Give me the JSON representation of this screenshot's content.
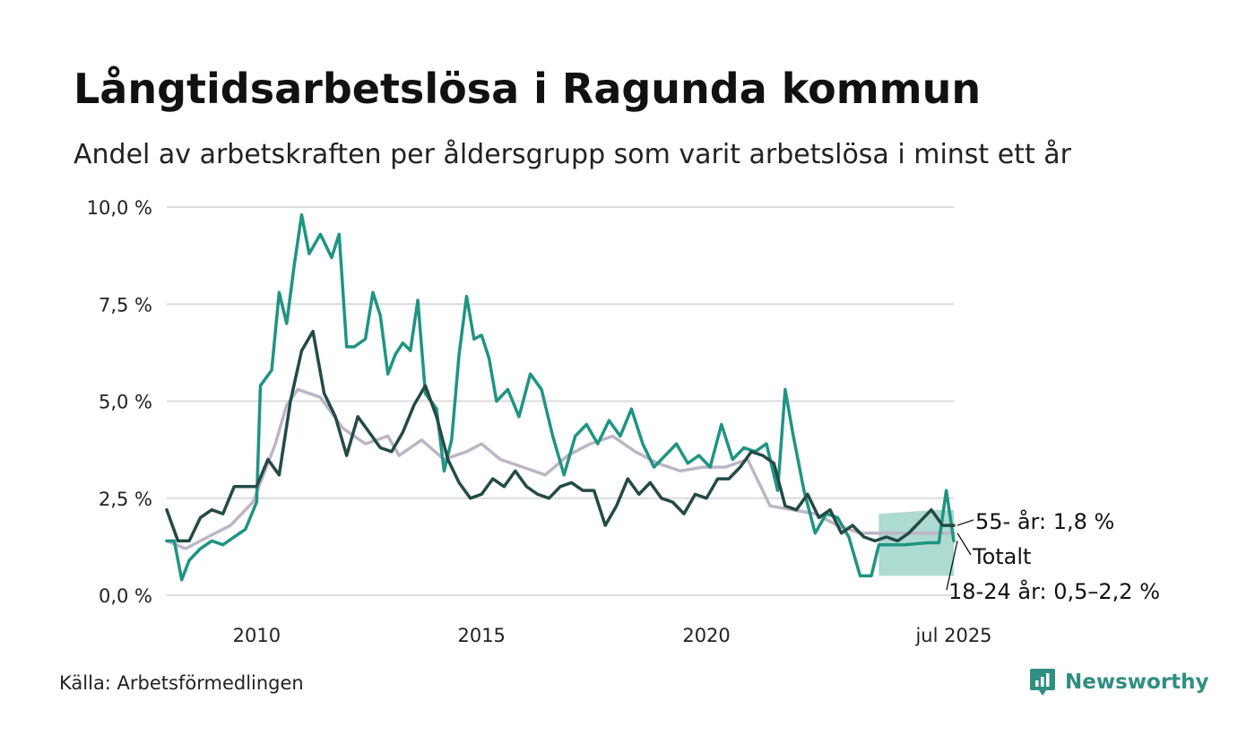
{
  "title": "Långtidsarbetslösa i Ragunda kommun",
  "subtitle": "Andel av arbetskraften per åldersgrupp som varit arbetslösa i minst ett år",
  "source": "Källa: Arbetsförmedlingen",
  "brand": "Newsworthy",
  "colors": {
    "total": "#bdb6c6",
    "youth": "#1f9483",
    "youth_band": "#9fd3c9",
    "older": "#244a46",
    "grid": "#dcdcdc",
    "brand": "#2f8f80"
  },
  "chart_data": {
    "type": "line",
    "x_unit": "month",
    "x_range": [
      "2008-01",
      "2025-07"
    ],
    "y_range": [
      0,
      10
    ],
    "y_ticks": [
      0,
      2.5,
      5,
      7.5,
      10
    ],
    "y_tick_labels": [
      "0,0 %",
      "2,5 %",
      "5,0 %",
      "7,5 %",
      "10,0 %"
    ],
    "x_ticks": [
      "2010-01",
      "2015-01",
      "2020-01",
      "2025-07"
    ],
    "x_tick_labels": [
      "2010",
      "2015",
      "2020",
      "jul 2025"
    ],
    "grid": true,
    "series": [
      {
        "name": "Totalt",
        "end_label": "Totalt",
        "color_key": "total",
        "points": [
          [
            "2008-01",
            1.4
          ],
          [
            "2008-06",
            1.2
          ],
          [
            "2008-12",
            1.5
          ],
          [
            "2009-06",
            1.8
          ],
          [
            "2009-12",
            2.4
          ],
          [
            "2010-06",
            3.9
          ],
          [
            "2010-09",
            4.9
          ],
          [
            "2010-12",
            5.3
          ],
          [
            "2011-06",
            5.1
          ],
          [
            "2011-12",
            4.3
          ],
          [
            "2012-06",
            3.9
          ],
          [
            "2012-12",
            4.1
          ],
          [
            "2013-03",
            3.6
          ],
          [
            "2013-09",
            4.0
          ],
          [
            "2014-03",
            3.5
          ],
          [
            "2014-09",
            3.7
          ],
          [
            "2015-01",
            3.9
          ],
          [
            "2015-06",
            3.5
          ],
          [
            "2015-12",
            3.3
          ],
          [
            "2016-06",
            3.1
          ],
          [
            "2016-12",
            3.6
          ],
          [
            "2017-06",
            3.9
          ],
          [
            "2017-12",
            4.1
          ],
          [
            "2018-06",
            3.7
          ],
          [
            "2018-12",
            3.4
          ],
          [
            "2019-06",
            3.2
          ],
          [
            "2019-12",
            3.3
          ],
          [
            "2020-06",
            3.3
          ],
          [
            "2020-12",
            3.5
          ],
          [
            "2021-06",
            2.3
          ],
          [
            "2021-12",
            2.2
          ],
          [
            "2022-06",
            2.1
          ],
          [
            "2022-12",
            1.8
          ],
          [
            "2023-06",
            1.6
          ],
          [
            "2023-12",
            1.6
          ],
          [
            "2024-06",
            1.6
          ],
          [
            "2024-12",
            1.6
          ],
          [
            "2025-07",
            1.6
          ]
        ]
      },
      {
        "name": "18-24 år",
        "end_label": "18-24 år: 0,5–2,2 %",
        "color_key": "youth",
        "points": [
          [
            "2008-01",
            1.4
          ],
          [
            "2008-03",
            1.4
          ],
          [
            "2008-05",
            0.4
          ],
          [
            "2008-07",
            0.9
          ],
          [
            "2008-10",
            1.2
          ],
          [
            "2009-01",
            1.4
          ],
          [
            "2009-04",
            1.3
          ],
          [
            "2009-07",
            1.5
          ],
          [
            "2009-10",
            1.7
          ],
          [
            "2010-01",
            2.4
          ],
          [
            "2010-02",
            5.4
          ],
          [
            "2010-05",
            5.8
          ],
          [
            "2010-07",
            7.8
          ],
          [
            "2010-09",
            7.0
          ],
          [
            "2010-11",
            8.5
          ],
          [
            "2011-01",
            9.8
          ],
          [
            "2011-03",
            8.8
          ],
          [
            "2011-06",
            9.3
          ],
          [
            "2011-09",
            8.7
          ],
          [
            "2011-11",
            9.3
          ],
          [
            "2012-01",
            6.4
          ],
          [
            "2012-03",
            6.4
          ],
          [
            "2012-06",
            6.6
          ],
          [
            "2012-08",
            7.8
          ],
          [
            "2012-10",
            7.2
          ],
          [
            "2012-12",
            5.7
          ],
          [
            "2013-02",
            6.2
          ],
          [
            "2013-04",
            6.5
          ],
          [
            "2013-06",
            6.3
          ],
          [
            "2013-08",
            7.6
          ],
          [
            "2013-10",
            5.2
          ],
          [
            "2014-01",
            4.8
          ],
          [
            "2014-03",
            3.2
          ],
          [
            "2014-05",
            4.0
          ],
          [
            "2014-07",
            6.2
          ],
          [
            "2014-09",
            7.7
          ],
          [
            "2014-11",
            6.6
          ],
          [
            "2015-01",
            6.7
          ],
          [
            "2015-03",
            6.1
          ],
          [
            "2015-05",
            5.0
          ],
          [
            "2015-08",
            5.3
          ],
          [
            "2015-11",
            4.6
          ],
          [
            "2016-02",
            5.7
          ],
          [
            "2016-05",
            5.3
          ],
          [
            "2016-08",
            4.1
          ],
          [
            "2016-11",
            3.1
          ],
          [
            "2017-02",
            4.1
          ],
          [
            "2017-05",
            4.4
          ],
          [
            "2017-08",
            3.9
          ],
          [
            "2017-11",
            4.5
          ],
          [
            "2018-02",
            4.1
          ],
          [
            "2018-05",
            4.8
          ],
          [
            "2018-08",
            3.9
          ],
          [
            "2018-11",
            3.3
          ],
          [
            "2019-02",
            3.6
          ],
          [
            "2019-05",
            3.9
          ],
          [
            "2019-08",
            3.4
          ],
          [
            "2019-11",
            3.6
          ],
          [
            "2020-02",
            3.3
          ],
          [
            "2020-05",
            4.4
          ],
          [
            "2020-08",
            3.5
          ],
          [
            "2020-11",
            3.8
          ],
          [
            "2021-02",
            3.7
          ],
          [
            "2021-05",
            3.9
          ],
          [
            "2021-08",
            2.7
          ],
          [
            "2021-10",
            5.3
          ],
          [
            "2021-12",
            4.2
          ],
          [
            "2022-03",
            2.7
          ],
          [
            "2022-06",
            1.6
          ],
          [
            "2022-09",
            2.1
          ],
          [
            "2022-12",
            2.0
          ],
          [
            "2023-03",
            1.5
          ],
          [
            "2023-06",
            0.5
          ],
          [
            "2023-09",
            0.5
          ],
          [
            "2023-11",
            1.3
          ],
          [
            "2024-06",
            1.3
          ],
          [
            "2024-12",
            1.35
          ],
          [
            "2025-03",
            1.35
          ],
          [
            "2025-05",
            2.7
          ],
          [
            "2025-07",
            1.4
          ]
        ],
        "band": {
          "points": [
            [
              "2023-11",
              0.5,
              2.1
            ],
            [
              "2025-03",
              0.5,
              2.2
            ],
            [
              "2025-07",
              0.5,
              2.2
            ]
          ]
        }
      },
      {
        "name": "55- år",
        "end_label": "55- år: 1,8 %",
        "color_key": "older",
        "points": [
          [
            "2008-01",
            2.2
          ],
          [
            "2008-04",
            1.4
          ],
          [
            "2008-07",
            1.4
          ],
          [
            "2008-10",
            2.0
          ],
          [
            "2009-01",
            2.2
          ],
          [
            "2009-04",
            2.1
          ],
          [
            "2009-07",
            2.8
          ],
          [
            "2009-10",
            2.8
          ],
          [
            "2010-01",
            2.8
          ],
          [
            "2010-04",
            3.5
          ],
          [
            "2010-07",
            3.1
          ],
          [
            "2010-10",
            5.0
          ],
          [
            "2011-01",
            6.3
          ],
          [
            "2011-04",
            6.8
          ],
          [
            "2011-07",
            5.2
          ],
          [
            "2011-10",
            4.6
          ],
          [
            "2012-01",
            3.6
          ],
          [
            "2012-04",
            4.6
          ],
          [
            "2012-07",
            4.2
          ],
          [
            "2012-10",
            3.8
          ],
          [
            "2013-01",
            3.7
          ],
          [
            "2013-04",
            4.2
          ],
          [
            "2013-07",
            4.9
          ],
          [
            "2013-10",
            5.4
          ],
          [
            "2014-01",
            4.6
          ],
          [
            "2014-04",
            3.5
          ],
          [
            "2014-07",
            2.9
          ],
          [
            "2014-10",
            2.5
          ],
          [
            "2015-01",
            2.6
          ],
          [
            "2015-04",
            3.0
          ],
          [
            "2015-07",
            2.8
          ],
          [
            "2015-10",
            3.2
          ],
          [
            "2016-01",
            2.8
          ],
          [
            "2016-04",
            2.6
          ],
          [
            "2016-07",
            2.5
          ],
          [
            "2016-10",
            2.8
          ],
          [
            "2017-01",
            2.9
          ],
          [
            "2017-04",
            2.7
          ],
          [
            "2017-07",
            2.7
          ],
          [
            "2017-10",
            1.8
          ],
          [
            "2018-01",
            2.3
          ],
          [
            "2018-04",
            3.0
          ],
          [
            "2018-07",
            2.6
          ],
          [
            "2018-10",
            2.9
          ],
          [
            "2019-01",
            2.5
          ],
          [
            "2019-04",
            2.4
          ],
          [
            "2019-07",
            2.1
          ],
          [
            "2019-10",
            2.6
          ],
          [
            "2020-01",
            2.5
          ],
          [
            "2020-04",
            3.0
          ],
          [
            "2020-07",
            3.0
          ],
          [
            "2020-10",
            3.3
          ],
          [
            "2021-01",
            3.7
          ],
          [
            "2021-04",
            3.6
          ],
          [
            "2021-07",
            3.4
          ],
          [
            "2021-10",
            2.3
          ],
          [
            "2022-01",
            2.2
          ],
          [
            "2022-04",
            2.6
          ],
          [
            "2022-07",
            2.0
          ],
          [
            "2022-10",
            2.2
          ],
          [
            "2023-01",
            1.6
          ],
          [
            "2023-04",
            1.8
          ],
          [
            "2023-07",
            1.5
          ],
          [
            "2023-10",
            1.4
          ],
          [
            "2024-01",
            1.5
          ],
          [
            "2024-04",
            1.4
          ],
          [
            "2024-07",
            1.6
          ],
          [
            "2024-10",
            1.9
          ],
          [
            "2025-01",
            2.2
          ],
          [
            "2025-04",
            1.8
          ],
          [
            "2025-07",
            1.8
          ]
        ]
      }
    ]
  }
}
